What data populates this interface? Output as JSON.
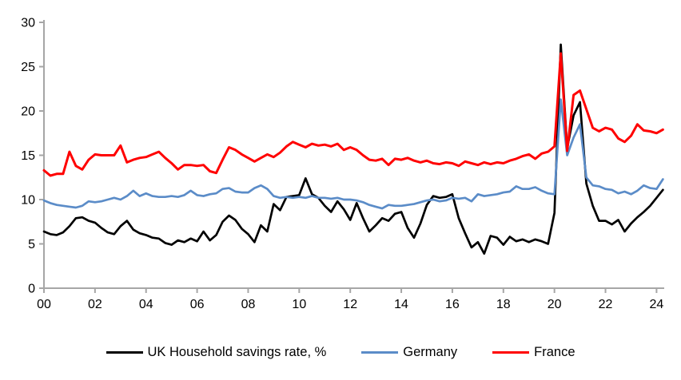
{
  "chart_data": {
    "type": "line",
    "title": "",
    "xlabel": "",
    "ylabel": "",
    "x_unit": "quarterly, 2000Q1 to 2024Q2",
    "ylim": [
      0,
      30
    ],
    "grid": false,
    "legend_position": "bottom",
    "axis_color": "#a6a6a6",
    "tick_label_color": "#000000",
    "y_ticks": [
      0,
      5,
      10,
      15,
      20,
      25,
      30
    ],
    "x_tick_labels": [
      "00",
      "02",
      "04",
      "06",
      "08",
      "10",
      "12",
      "14",
      "16",
      "18",
      "20",
      "22",
      "24"
    ],
    "series": [
      {
        "name": "UK Household savings rate, %",
        "color": "#000000",
        "stroke_width": 2.7,
        "values": [
          6.4,
          6.1,
          6.0,
          6.3,
          7.0,
          7.9,
          8.0,
          7.6,
          7.4,
          6.8,
          6.3,
          6.1,
          7.0,
          7.6,
          6.6,
          6.2,
          6.0,
          5.7,
          5.6,
          5.1,
          4.9,
          5.4,
          5.2,
          5.6,
          5.3,
          6.4,
          5.4,
          6.0,
          7.5,
          8.2,
          7.7,
          6.7,
          6.1,
          5.2,
          7.1,
          6.4,
          9.5,
          8.8,
          10.3,
          10.4,
          10.5,
          12.4,
          10.6,
          10.2,
          9.3,
          8.6,
          9.8,
          8.9,
          7.7,
          9.6,
          7.9,
          6.4,
          7.1,
          7.9,
          7.6,
          8.4,
          8.6,
          6.8,
          5.7,
          7.3,
          9.4,
          10.4,
          10.2,
          10.3,
          10.6,
          7.9,
          6.2,
          4.6,
          5.2,
          3.9,
          5.9,
          5.7,
          4.9,
          5.8,
          5.3,
          5.5,
          5.2,
          5.5,
          5.3,
          5.0,
          8.5,
          27.5,
          15.8,
          19.5,
          21.0,
          11.8,
          9.3,
          7.6,
          7.6,
          7.2,
          7.7,
          6.4,
          7.3,
          8.0,
          8.6,
          9.3,
          10.2,
          11.1
        ]
      },
      {
        "name": "Germany",
        "color": "#5b8cc8",
        "stroke_width": 2.7,
        "values": [
          9.9,
          9.6,
          9.4,
          9.3,
          9.2,
          9.1,
          9.3,
          9.8,
          9.7,
          9.8,
          10.0,
          10.2,
          10.0,
          10.4,
          11.0,
          10.4,
          10.7,
          10.4,
          10.3,
          10.3,
          10.4,
          10.3,
          10.5,
          11.0,
          10.5,
          10.4,
          10.6,
          10.7,
          11.2,
          11.3,
          10.9,
          10.8,
          10.8,
          11.3,
          11.6,
          11.2,
          10.4,
          10.2,
          10.3,
          10.2,
          10.3,
          10.2,
          10.4,
          10.2,
          10.2,
          10.1,
          10.2,
          10.0,
          10.0,
          9.9,
          9.7,
          9.4,
          9.2,
          9.0,
          9.4,
          9.3,
          9.3,
          9.4,
          9.5,
          9.7,
          9.9,
          10.0,
          9.8,
          9.9,
          10.2,
          10.1,
          10.2,
          9.8,
          10.6,
          10.4,
          10.5,
          10.6,
          10.8,
          10.9,
          11.5,
          11.2,
          11.2,
          11.4,
          11.0,
          10.7,
          10.6,
          21.3,
          15.0,
          17.0,
          18.5,
          12.5,
          11.6,
          11.5,
          11.2,
          11.1,
          10.7,
          10.9,
          10.6,
          11.0,
          11.6,
          11.3,
          11.2,
          12.3
        ]
      },
      {
        "name": "France",
        "color": "#ff0000",
        "stroke_width": 3.0,
        "values": [
          13.3,
          12.7,
          12.9,
          12.9,
          15.4,
          13.8,
          13.4,
          14.5,
          15.1,
          15.0,
          15.0,
          15.0,
          16.1,
          14.2,
          14.5,
          14.7,
          14.8,
          15.1,
          15.4,
          14.7,
          14.1,
          13.4,
          13.9,
          13.9,
          13.8,
          13.9,
          13.2,
          13.0,
          14.5,
          15.9,
          15.6,
          15.1,
          14.7,
          14.3,
          14.7,
          15.1,
          14.8,
          15.3,
          16.0,
          16.5,
          16.2,
          15.9,
          16.3,
          16.1,
          16.2,
          16.0,
          16.3,
          15.6,
          15.9,
          15.6,
          15.0,
          14.5,
          14.4,
          14.6,
          13.9,
          14.6,
          14.5,
          14.7,
          14.4,
          14.2,
          14.4,
          14.1,
          14.0,
          14.2,
          14.1,
          13.8,
          14.3,
          14.1,
          13.9,
          14.2,
          14.0,
          14.2,
          14.1,
          14.4,
          14.6,
          14.9,
          15.1,
          14.6,
          15.2,
          15.4,
          16.0,
          26.5,
          15.5,
          21.8,
          22.3,
          20.2,
          18.1,
          17.7,
          18.1,
          17.9,
          16.9,
          16.5,
          17.2,
          18.5,
          17.8,
          17.7,
          17.5,
          17.9
        ]
      }
    ]
  },
  "legend": {
    "items": [
      {
        "label": "UK Household savings rate, %"
      },
      {
        "label": "Germany"
      },
      {
        "label": "France"
      }
    ]
  }
}
